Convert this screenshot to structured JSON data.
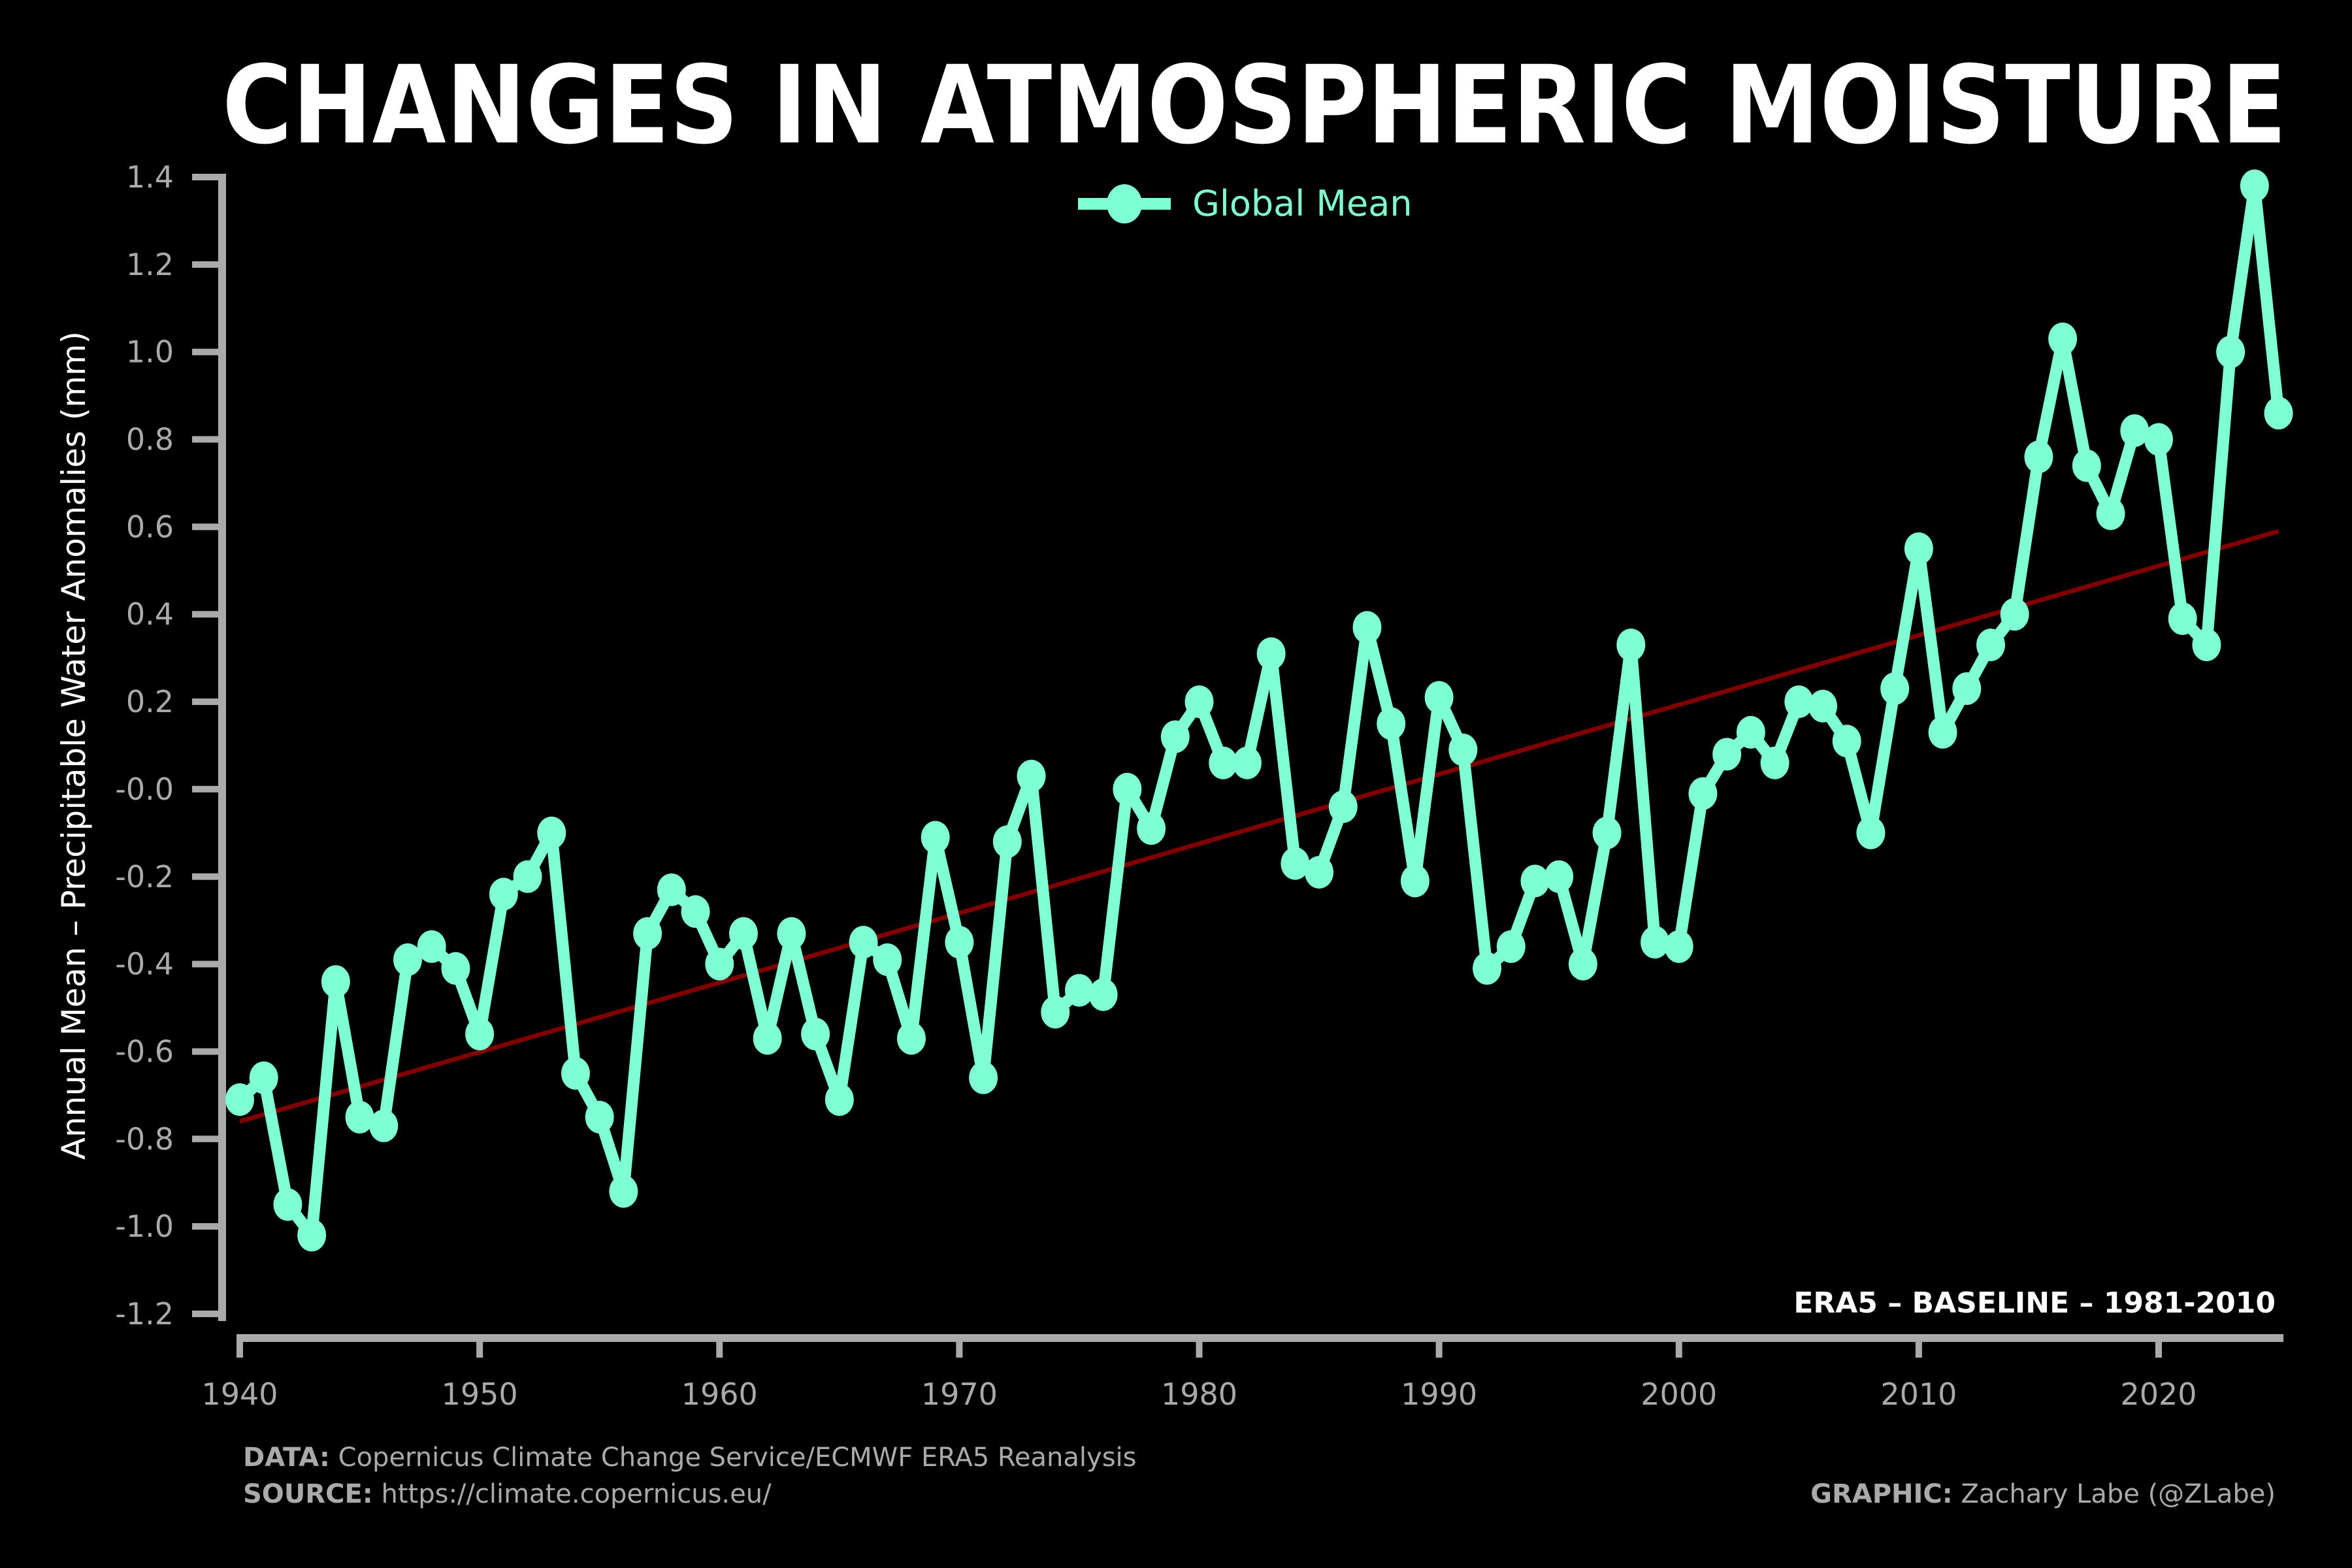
{
  "colors": {
    "background": "#000000",
    "series": "#7fffd4",
    "trend": "#800000",
    "axis": "#aaaaaa",
    "title": "#ffffff"
  },
  "chart_data": {
    "type": "line",
    "title": "CHANGES IN ATMOSPHERIC MOISTURE",
    "xlabel": "",
    "ylabel": "Annual Mean – Precipitable Water Anomalies (mm)",
    "xlim": [
      1940,
      2025
    ],
    "ylim": [
      -1.2,
      1.4
    ],
    "grid": false,
    "legend_position": "top-center",
    "x_ticks": [
      "1940",
      "1950",
      "1960",
      "1970",
      "1980",
      "1990",
      "2000",
      "2010",
      "2020"
    ],
    "y_ticks": [
      "1.4",
      "1.2",
      "1.0",
      "0.8",
      "0.6",
      "0.4",
      "0.2",
      "-0.0",
      "-0.2",
      "-0.4",
      "-0.6",
      "-0.8",
      "-1.0",
      "-1.2"
    ],
    "annotation": "ERA5 – BASELINE – 1981-2010",
    "series": [
      {
        "name": "Global Mean",
        "x_start": 1940,
        "values": [
          -0.71,
          -0.66,
          -0.95,
          -1.02,
          -0.44,
          -0.75,
          -0.77,
          -0.39,
          -0.36,
          -0.41,
          -0.56,
          -0.24,
          -0.2,
          -0.1,
          -0.65,
          -0.75,
          -0.92,
          -0.33,
          -0.23,
          -0.28,
          -0.4,
          -0.33,
          -0.57,
          -0.33,
          -0.56,
          -0.71,
          -0.35,
          -0.39,
          -0.57,
          -0.11,
          -0.35,
          -0.66,
          -0.12,
          0.03,
          -0.51,
          -0.46,
          -0.47,
          0.0,
          -0.09,
          0.12,
          0.2,
          0.06,
          0.06,
          0.31,
          -0.17,
          -0.19,
          -0.04,
          0.37,
          0.15,
          -0.21,
          0.21,
          0.09,
          -0.41,
          -0.36,
          -0.21,
          -0.2,
          -0.4,
          -0.1,
          0.33,
          -0.35,
          -0.36,
          -0.01,
          0.08,
          0.13,
          0.06,
          0.2,
          0.19,
          0.11,
          -0.1,
          0.23,
          0.55,
          0.13,
          0.23,
          0.33,
          0.4,
          0.76,
          1.03,
          0.74,
          0.63,
          0.82,
          0.8,
          0.39,
          0.33,
          1.0,
          1.38,
          0.86
        ]
      }
    ],
    "trend": {
      "x": [
        1940,
        2025
      ],
      "y": [
        -0.76,
        0.59
      ]
    }
  },
  "footer": {
    "data_label": "DATA:",
    "data_value": " Copernicus Climate Change Service/ECMWF ERA5 Reanalysis",
    "source_label": "SOURCE:",
    "source_value": " https://climate.copernicus.eu/",
    "graphic_label": "GRAPHIC:",
    "graphic_value": " Zachary Labe (@ZLabe)"
  }
}
